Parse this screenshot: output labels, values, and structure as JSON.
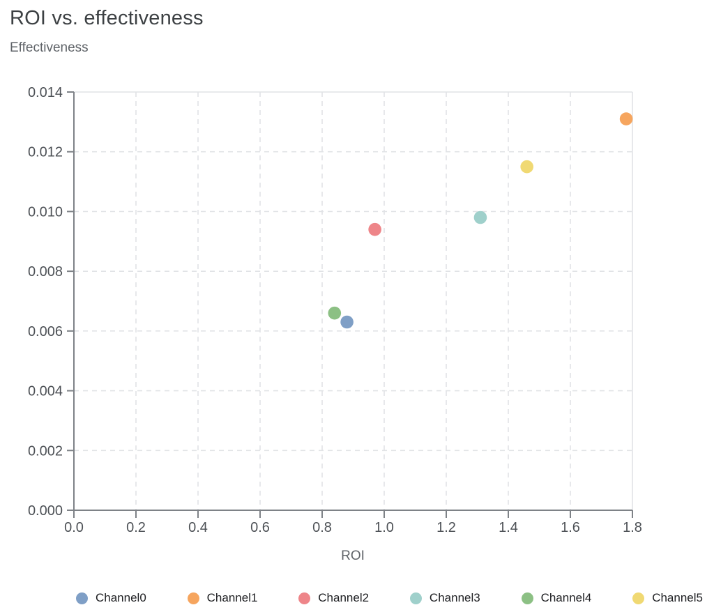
{
  "header": {
    "title": "ROI vs. effectiveness"
  },
  "chart_data": {
    "type": "scatter",
    "title": "ROI vs. effectiveness",
    "xlabel": "ROI",
    "ylabel": "Effectiveness",
    "xlim": [
      0,
      1.8
    ],
    "ylim": [
      0,
      0.014
    ],
    "x_ticks": [
      0,
      0.2,
      0.4,
      0.6,
      0.8,
      1.0,
      1.2,
      1.4,
      1.6,
      1.8
    ],
    "x_tick_labels": [
      "0.0",
      "0.2",
      "0.4",
      "0.6",
      "0.8",
      "1.0",
      "1.2",
      "1.4",
      "1.6",
      "1.8"
    ],
    "y_ticks": [
      0,
      0.002,
      0.004,
      0.006,
      0.008,
      0.01,
      0.012,
      0.014
    ],
    "y_tick_labels": [
      "0.000",
      "0.002",
      "0.004",
      "0.006",
      "0.008",
      "0.010",
      "0.012",
      "0.014"
    ],
    "grid": true,
    "grid_style": "dashed",
    "legend_position": "bottom",
    "marker_radius": 9.3,
    "series": [
      {
        "name": "Channel0",
        "color": "#7f9fc6",
        "x": 0.88,
        "y": 0.0063
      },
      {
        "name": "Channel1",
        "color": "#f6a55e",
        "x": 1.78,
        "y": 0.0131
      },
      {
        "name": "Channel2",
        "color": "#ee8589",
        "x": 0.97,
        "y": 0.0094
      },
      {
        "name": "Channel3",
        "color": "#9fd0cb",
        "x": 1.31,
        "y": 0.0098
      },
      {
        "name": "Channel4",
        "color": "#8cc084",
        "x": 0.84,
        "y": 0.0066
      },
      {
        "name": "Channel5",
        "color": "#f0d973",
        "x": 1.46,
        "y": 0.0115
      }
    ],
    "style_colors": {
      "axis": "#7e8287",
      "grid": "#e1e3e6",
      "tick_text": "#4d5156",
      "title_text": "#3c4043",
      "label_text": "#5f6368",
      "legend_text": "#202124"
    }
  }
}
